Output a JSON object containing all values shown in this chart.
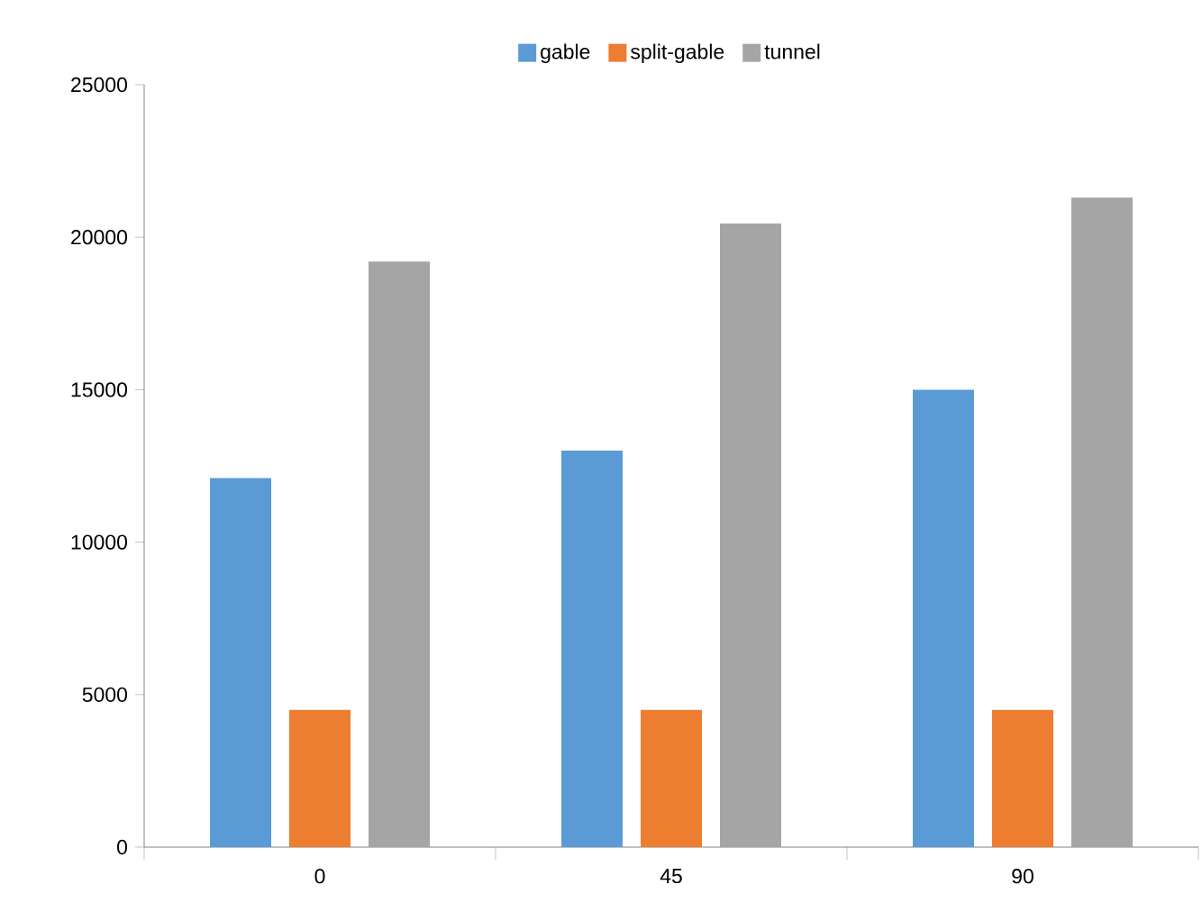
{
  "chart_data": {
    "type": "bar",
    "categories": [
      "0",
      "45",
      "90"
    ],
    "series": [
      {
        "name": "gable",
        "color": "#5b9bd5",
        "values": [
          12100,
          13000,
          15000
        ]
      },
      {
        "name": "split-gable",
        "color": "#ed7d31",
        "values": [
          4500,
          4500,
          4500
        ]
      },
      {
        "name": "tunnel",
        "color": "#a5a5a5",
        "values": [
          19200,
          20450,
          21300
        ]
      }
    ],
    "ylim": [
      0,
      25000
    ],
    "yticks": [
      0,
      5000,
      10000,
      15000,
      20000,
      25000
    ],
    "legend": "top",
    "grid": false
  }
}
